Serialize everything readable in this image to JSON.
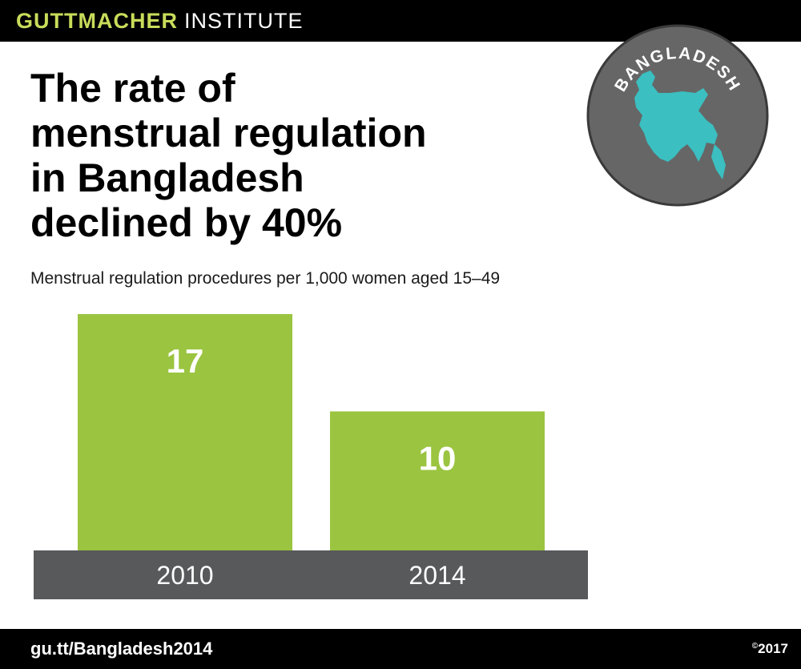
{
  "header": {
    "brand_bold": "GUTTMACHER",
    "brand_light": "INSTITUTE"
  },
  "headline": {
    "lines": [
      "The rate of",
      "menstrual regulation",
      "in Bangladesh",
      "declined by 40%"
    ]
  },
  "subtitle": "Menstrual regulation procedures per 1,000 women aged 15–49",
  "badge": {
    "label": "BANGLADESH",
    "icon": "bangladesh-map-icon"
  },
  "footer": {
    "url": "gu.tt/Bangladesh2014",
    "copyright_symbol": "©",
    "year": "2017"
  },
  "colors": {
    "bar": "#9bc440",
    "axis_band": "#58595b",
    "brand_accent": "#c9dc5a",
    "map": "#3bbfc1",
    "badge_bg": "#666666"
  },
  "chart_data": {
    "type": "bar",
    "categories": [
      "2010",
      "2014"
    ],
    "values": [
      17,
      10
    ],
    "ylim": [
      0,
      17
    ],
    "title": "",
    "xlabel": "",
    "ylabel": "",
    "grid": false,
    "legend": "none"
  }
}
